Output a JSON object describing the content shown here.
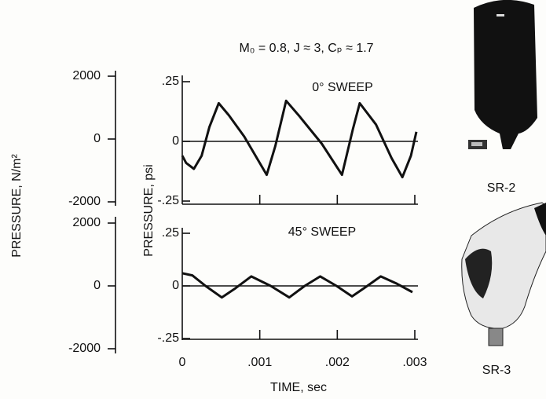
{
  "title": "M₀ = 0.8, J ≈ 3, Cₚ ≈ 1.7",
  "photos": [
    "SR-2",
    "SR-3"
  ],
  "chart_data": [
    {
      "type": "line",
      "ylabel": "PRESSURE, psi",
      "y2label": "PRESSURE, N/m²",
      "annotation": "0° SWEEP",
      "xlim": [
        0,
        0.003
      ],
      "ylim": [
        -0.25,
        0.25
      ],
      "y2lim": [
        -2000,
        2000
      ],
      "zero_line": true,
      "color": "#111111",
      "yticks": [
        {
          "value": 0.25,
          "label": ".25"
        },
        0,
        {
          "value": -0.25,
          "label": "-.25"
        }
      ],
      "y2ticks": [
        2000,
        0,
        -2000
      ],
      "x": [
        0,
        5e-05,
        0.00015,
        0.00025,
        0.00035,
        0.00047,
        0.0006,
        0.0008,
        0.00109,
        0.0012,
        0.00134,
        0.0015,
        0.0018,
        0.00206,
        0.0022,
        0.00229,
        0.0025,
        0.0027,
        0.00284,
        0.00295,
        0.00302
      ],
      "values": [
        -0.06,
        -0.09,
        -0.115,
        -0.06,
        0.06,
        0.16,
        0.11,
        0.02,
        -0.14,
        -0.02,
        0.17,
        0.11,
        -0.01,
        -0.14,
        0.05,
        0.16,
        0.07,
        -0.07,
        -0.15,
        -0.06,
        0.04
      ]
    },
    {
      "type": "line",
      "xlabel": "TIME, sec",
      "annotation": "45° SWEEP",
      "xlim": [
        0,
        0.003
      ],
      "ylim": [
        -0.25,
        0.25
      ],
      "y2lim": [
        -2000,
        2000
      ],
      "zero_line": true,
      "color": "#111111",
      "yticks": [
        {
          "value": 0.25,
          "label": ".25"
        },
        0,
        {
          "value": -0.25,
          "label": "-.25"
        }
      ],
      "y2ticks": [
        2000,
        0,
        -2000
      ],
      "xticks": [
        0,
        {
          "value": 0.001,
          "label": ".001"
        },
        {
          "value": 0.002,
          "label": ".002"
        },
        {
          "value": 0.003,
          "label": ".003"
        }
      ],
      "x": [
        0,
        0.00013,
        0.0003,
        0.00051,
        0.00069,
        0.00089,
        0.00114,
        0.00138,
        0.00158,
        0.00178,
        0.00199,
        0.00219,
        0.00237,
        0.00256,
        0.00277,
        0.00297
      ],
      "values": [
        0.06,
        0.05,
        0,
        -0.055,
        -0.01,
        0.045,
        0,
        -0.055,
        0,
        0.045,
        0,
        -0.05,
        -0.005,
        0.045,
        0.01,
        -0.03
      ]
    }
  ]
}
